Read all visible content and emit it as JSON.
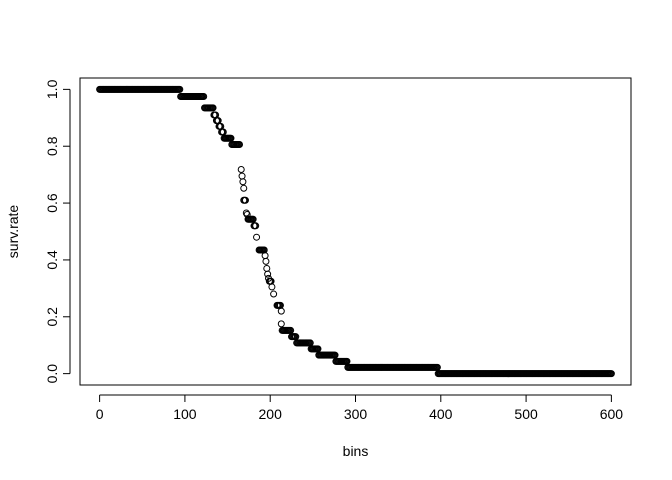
{
  "chart_data": {
    "type": "scatter",
    "xlabel": "bins",
    "ylabel": "surv.rate",
    "xlim": [
      -23,
      623
    ],
    "ylim": [
      -0.04,
      1.04
    ],
    "xticks": [
      0,
      100,
      200,
      300,
      400,
      500,
      600
    ],
    "yticks": [
      0.0,
      0.2,
      0.4,
      0.6,
      0.8,
      1.0
    ],
    "xtick_labels": [
      "0",
      "100",
      "200",
      "300",
      "400",
      "500",
      "600"
    ],
    "ytick_labels": [
      "0.0",
      "0.2",
      "0.4",
      "0.6",
      "0.8",
      "1.0"
    ],
    "marker": "open-circle",
    "series": [
      {
        "segments": [
          {
            "x_start": 0,
            "x_end": 94,
            "step": 1,
            "y": 1.0
          },
          {
            "x_start": 95,
            "x_end": 122,
            "step": 1,
            "y": 0.975
          },
          {
            "x_start": 123,
            "x_end": 133,
            "step": 1,
            "y": 0.935
          },
          {
            "x_start": 134,
            "x_end": 136,
            "step": 1,
            "y": 0.91
          },
          {
            "x_start": 137,
            "x_end": 139,
            "step": 1,
            "y": 0.89
          },
          {
            "x_start": 140,
            "x_end": 142,
            "step": 1,
            "y": 0.87
          },
          {
            "x_start": 143,
            "x_end": 145,
            "step": 1,
            "y": 0.85
          },
          {
            "x_start": 146,
            "x_end": 154,
            "step": 1,
            "y": 0.828
          },
          {
            "x_start": 155,
            "x_end": 164,
            "step": 1,
            "y": 0.806
          },
          {
            "x_start": 169,
            "x_end": 171,
            "step": 1,
            "y": 0.61
          },
          {
            "x_start": 174,
            "x_end": 180,
            "step": 1,
            "y": 0.543
          },
          {
            "x_start": 181,
            "x_end": 183,
            "step": 1,
            "y": 0.52
          },
          {
            "x_start": 187,
            "x_end": 193,
            "step": 1,
            "y": 0.435
          },
          {
            "x_start": 199,
            "x_end": 201,
            "step": 1,
            "y": 0.325
          },
          {
            "x_start": 208,
            "x_end": 212,
            "step": 1,
            "y": 0.24
          },
          {
            "x_start": 214,
            "x_end": 224,
            "step": 1,
            "y": 0.152
          },
          {
            "x_start": 225,
            "x_end": 230,
            "step": 1,
            "y": 0.13
          },
          {
            "x_start": 231,
            "x_end": 247,
            "step": 1,
            "y": 0.108
          },
          {
            "x_start": 248,
            "x_end": 256,
            "step": 1,
            "y": 0.087
          },
          {
            "x_start": 257,
            "x_end": 276,
            "step": 1,
            "y": 0.065
          },
          {
            "x_start": 277,
            "x_end": 290,
            "step": 1,
            "y": 0.043
          },
          {
            "x_start": 291,
            "x_end": 396,
            "step": 1,
            "y": 0.022
          },
          {
            "x_start": 397,
            "x_end": 600,
            "step": 1,
            "y": 0.0
          }
        ],
        "points": [
          [
            166,
            0.718
          ],
          [
            167,
            0.695
          ],
          [
            168,
            0.675
          ],
          [
            169,
            0.652
          ],
          [
            172,
            0.565
          ],
          [
            173,
            0.56
          ],
          [
            184,
            0.48
          ],
          [
            194,
            0.415
          ],
          [
            195,
            0.395
          ],
          [
            196,
            0.37
          ],
          [
            197,
            0.35
          ],
          [
            198,
            0.335
          ],
          [
            202,
            0.305
          ],
          [
            204,
            0.28
          ],
          [
            213,
            0.175
          ],
          [
            213,
            0.22
          ]
        ]
      }
    ]
  }
}
